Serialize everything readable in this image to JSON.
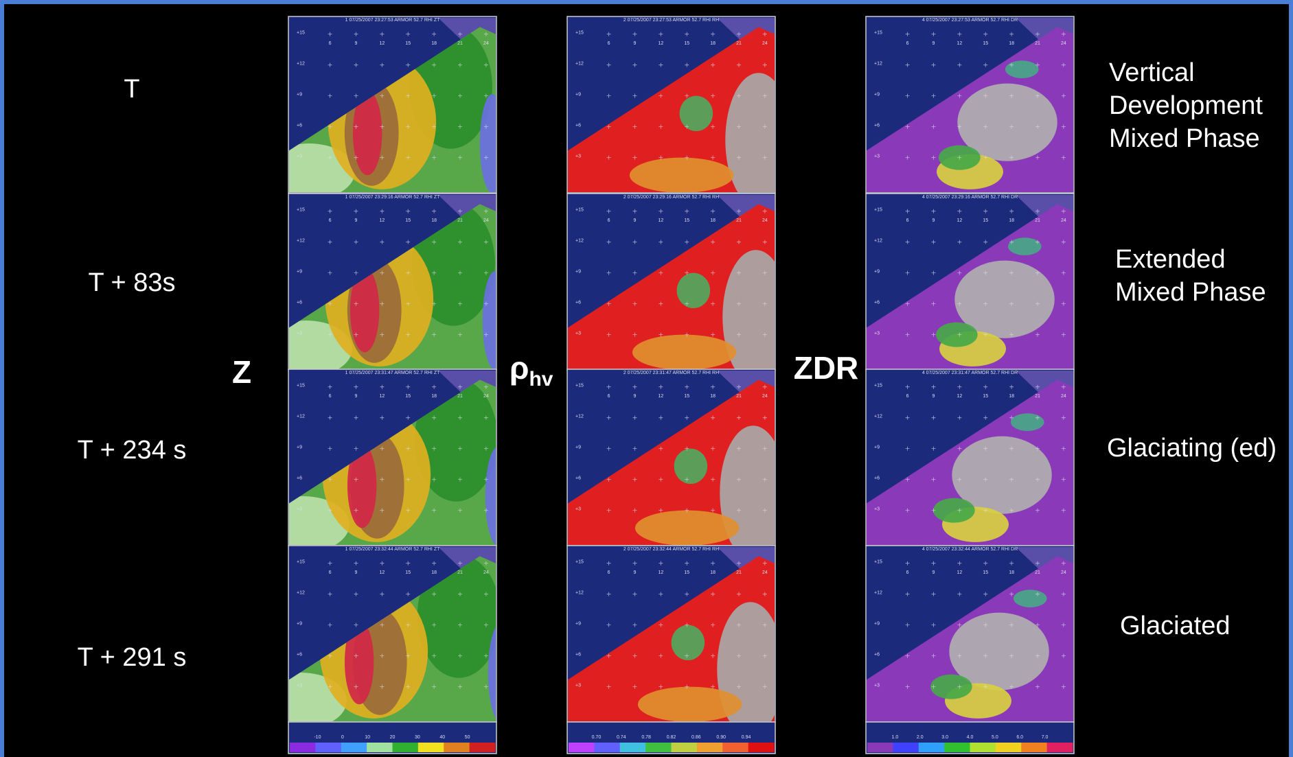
{
  "slide": {
    "columns": [
      {
        "symbol": "Z",
        "colorbar": [
          "-10",
          "0",
          "10",
          "20",
          "30",
          "40",
          "50"
        ]
      },
      {
        "symbol": "ρ",
        "subscript": "hv",
        "colorbar": [
          "0.70",
          "0.74",
          "0.78",
          "0.82",
          "0.86",
          "0.90",
          "0.94"
        ]
      },
      {
        "symbol": "ZDR",
        "colorbar": [
          "1.0",
          "2.0",
          "3.0",
          "4.0",
          "5.0",
          "6.0",
          "7.0"
        ]
      }
    ],
    "panel_x_ticks": [
      "6",
      "9",
      "12",
      "15",
      "18",
      "21",
      "24"
    ],
    "panel_y_ticks": [
      "+15",
      "+12",
      "+9",
      "+6",
      "+3"
    ],
    "rows": [
      {
        "label": "T",
        "note": [
          "Vertical",
          "Development",
          "Mixed Phase"
        ],
        "panels": [
          "1 07/25/2007 23:27:53 ARMOR 52.7 RHI ZT",
          "2 07/25/2007 23:27:53 ARMOR 52.7 RHI RH",
          "4 07/25/2007 23:27:53 ARMOR 52.7 RHI DR"
        ]
      },
      {
        "label": "T + 83s",
        "note": [
          "Extended",
          "Mixed Phase"
        ],
        "panels": [
          "1 07/25/2007 23:29:16 ARMOR 52.7 RHI ZT",
          "2 07/25/2007 23:29:16 ARMOR 52.7 RHI RH",
          "4 07/25/2007 23:29:16 ARMOR 52.7 RHI DR"
        ]
      },
      {
        "label": "T + 234 s",
        "note": [
          "Glaciating (ed)"
        ],
        "panels": [
          "1 07/25/2007 23:31:47 ARMOR 52.7 RHI ZT",
          "2 07/25/2007 23:31:47 ARMOR 52.7 RHI RH",
          "4 07/25/2007 23:31:47 ARMOR 52.7 RHI DR"
        ]
      },
      {
        "label": "T + 291 s",
        "note": [
          "Glaciated"
        ],
        "panels": [
          "1 07/25/2007 23:32:44 ARMOR 52.7 RHI ZT",
          "2 07/25/2007 23:32:44 ARMOR 52.7 RHI RH",
          "4 07/25/2007 23:32:44 ARMOR 52.7 RHI DR"
        ]
      }
    ]
  }
}
